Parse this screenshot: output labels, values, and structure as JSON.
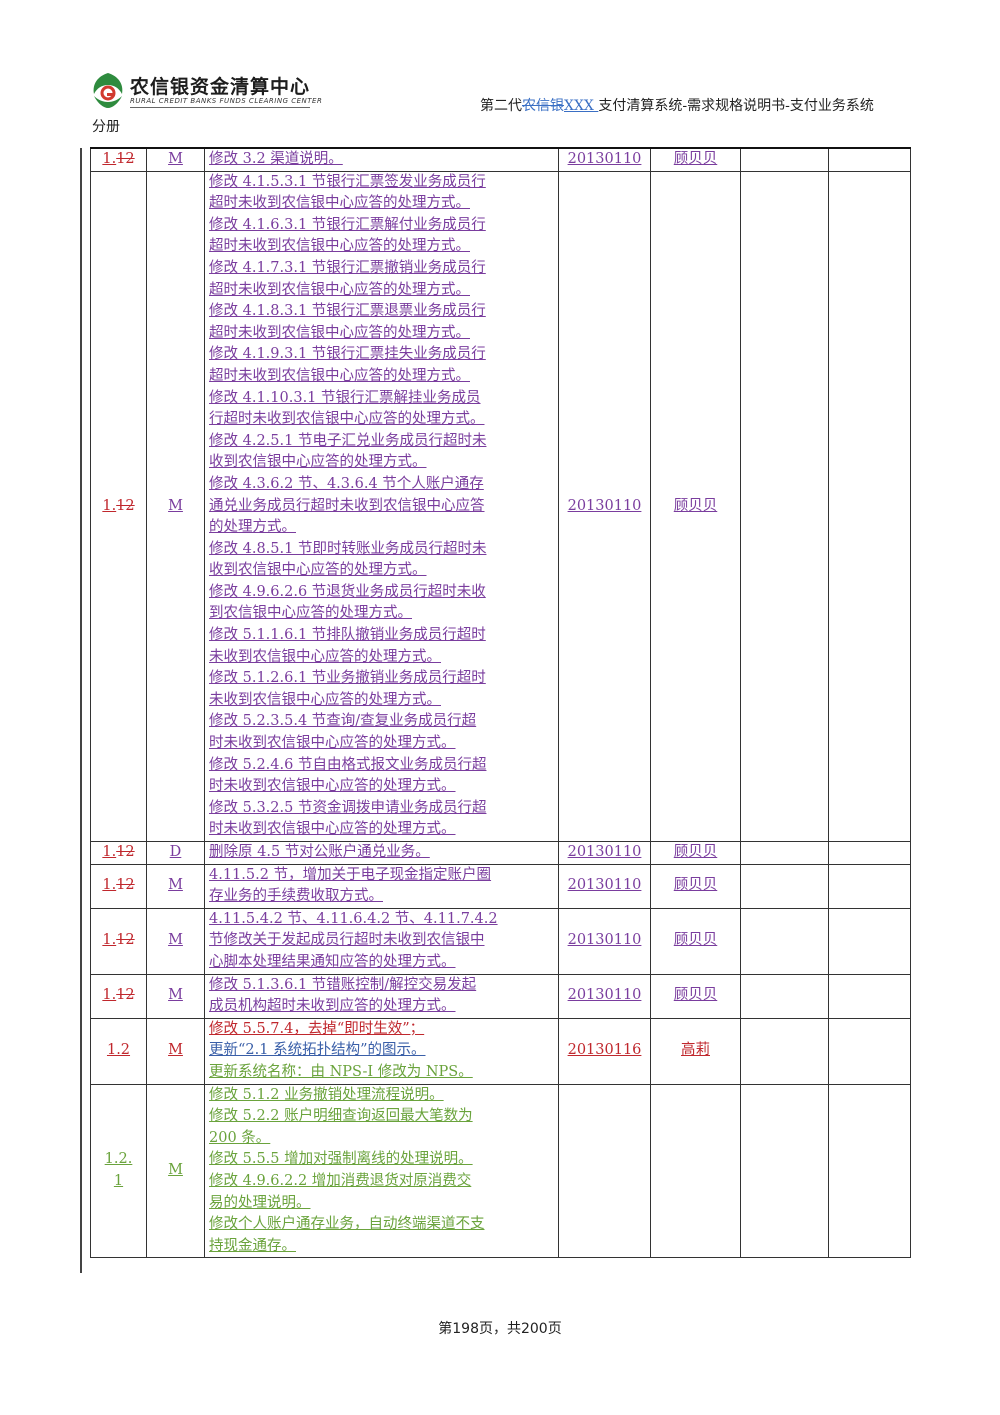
{
  "header": {
    "logo_cn": "农信银资金清算中心",
    "logo_en": "RURAL CREDIT BANKS FUNDS CLEARING CENTER",
    "title_prefix": "第二代",
    "title_deleted": "农信银",
    "title_inserted": "XXX ",
    "title_suffix": "支付清算系统-需求规格说明书-支付业务系统",
    "subtitle": "分册"
  },
  "colors": {
    "purple": "#7a3d9e",
    "red": "#c0272d",
    "blue": "#3a5fa8",
    "green": "#6aa33c"
  },
  "rows": [
    {
      "ver_a": "1.",
      "ver_b": "12",
      "type": "M",
      "desc": [
        "修改 3.2 渠道说明。"
      ],
      "date": "20130110",
      "author": "顾贝贝"
    },
    {
      "ver_a": "1.",
      "ver_b": "12",
      "type": "M",
      "desc": [
        "修改 4.1.5.3.1 节银行汇票签发业务成员行",
        "超时未收到农信银中心应答的处理方式。",
        "修改 4.1.6.3.1 节银行汇票解付业务成员行",
        "超时未收到农信银中心应答的处理方式。",
        "修改 4.1.7.3.1 节银行汇票撤销业务成员行",
        "超时未收到农信银中心应答的处理方式。",
        "修改 4.1.8.3.1 节银行汇票退票业务成员行",
        "超时未收到农信银中心应答的处理方式。",
        "修改 4.1.9.3.1 节银行汇票挂失业务成员行",
        "超时未收到农信银中心应答的处理方式。",
        "修改 4.1.10.3.1 节银行汇票解挂业务成员",
        "行超时未收到农信银中心应答的处理方式。",
        "修改 4.2.5.1 节电子汇兑业务成员行超时未",
        "收到农信银中心应答的处理方式。",
        "修改 4.3.6.2 节、4.3.6.4 节个人账户通存",
        "通兑业务成员行超时未收到农信银中心应答",
        "的处理方式。",
        "修改 4.8.5.1 节即时转账业务成员行超时未",
        "收到农信银中心应答的处理方式。",
        "修改 4.9.6.2.6 节退货业务成员行超时未收",
        "到农信银中心应答的处理方式。",
        "修改 5.1.1.6.1 节排队撤销业务成员行超时",
        "未收到农信银中心应答的处理方式。",
        "修改 5.1.2.6.1 节业务撤销业务成员行超时",
        "未收到农信银中心应答的处理方式。",
        "修改 5.2.3.5.4 节查询/查复业务成员行超",
        "时未收到农信银中心应答的处理方式。",
        "修改 5.2.4.6 节自由格式报文业务成员行超",
        "时未收到农信银中心应答的处理方式。",
        "修改 5.3.2.5 节资金调拨申请业务成员行超",
        "时未收到农信银中心应答的处理方式。"
      ],
      "date": "20130110",
      "author": "顾贝贝"
    },
    {
      "ver_a": "1.",
      "ver_b": "12",
      "type": "D",
      "desc": [
        "删除原 4.5 节对公账户通兑业务。"
      ],
      "date": "20130110",
      "author": "顾贝贝"
    },
    {
      "ver_a": "1.",
      "ver_b": "12",
      "type": "M",
      "desc": [
        "4.11.5.2 节，增加关于电子现金指定账户圈",
        "存业务的手续费收取方式。"
      ],
      "date": "20130110",
      "author": "顾贝贝"
    },
    {
      "ver_a": "1.",
      "ver_b": "12",
      "type": "M",
      "desc": [
        "4.11.5.4.2 节、4.11.6.4.2 节、4.11.7.4.2",
        "节修改关于发起成员行超时未收到农信银中",
        "心脚本处理结果通知应答的处理方式。"
      ],
      "date": "20130110",
      "author": "顾贝贝"
    },
    {
      "ver_a": "1.",
      "ver_b": "12",
      "type": "M",
      "desc": [
        "修改 5.1.3.6.1 节错账控制/解控交易发起",
        "成员机构超时未收到应答的处理方式。"
      ],
      "date": "20130110",
      "author": "顾贝贝"
    },
    {
      "ver": "1.2",
      "type": "M",
      "desc_red": "修改 5.5.7.4，去掉“即时生效”；",
      "desc_blue": "更新“2.1 系统拓扑结构”的图示。",
      "desc_green": "更新系统名称：由 NPS-I 修改为 NPS。",
      "date": "20130116",
      "author": "高莉"
    },
    {
      "ver_a": "1.2.",
      "ver_b": "1",
      "type": "M",
      "desc": [
        "修改 5.1.2 业务撤销处理流程说明。",
        "修改 5.2.2 账户明细查询返回最大笔数为",
        "200 条。",
        "修改 5.5.5 增加对强制离线的处理说明。",
        "修改 4.9.6.2.2 增加消费退货对原消费交",
        "易的处理说明。",
        "修改个人账户通存业务，自动终端渠道不支",
        "持现金通存。"
      ]
    }
  ],
  "footer": {
    "page_text": "第198页，共200页"
  }
}
